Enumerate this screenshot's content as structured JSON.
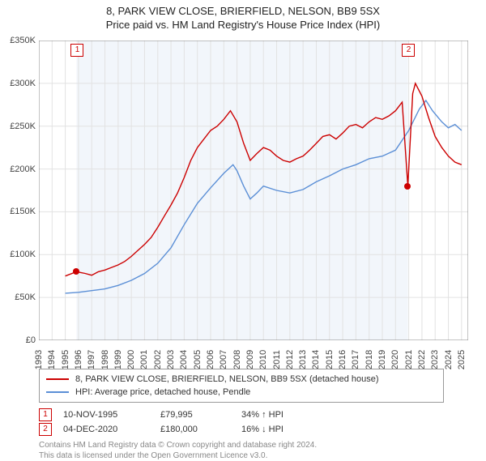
{
  "title": {
    "main": "8, PARK VIEW CLOSE, BRIERFIELD, NELSON, BB9 5SX",
    "sub": "Price paid vs. HM Land Registry's House Price Index (HPI)"
  },
  "chart": {
    "type": "line",
    "background_color": "#ffffff",
    "plot_band_color": "#f2f6fb",
    "grid_color": "#e2e2e2",
    "axis_color": "#888888",
    "ylim": [
      0,
      350000
    ],
    "ytick_step": 50000,
    "yticks_labels": [
      "£0",
      "£50K",
      "£100K",
      "£150K",
      "£200K",
      "£250K",
      "£300K",
      "£350K"
    ],
    "xlim": [
      1993,
      2025.5
    ],
    "xticks": [
      1993,
      1994,
      1995,
      1996,
      1997,
      1998,
      1999,
      2000,
      2001,
      2002,
      2003,
      2004,
      2005,
      2006,
      2007,
      2008,
      2009,
      2010,
      2011,
      2012,
      2013,
      2014,
      2015,
      2016,
      2017,
      2018,
      2019,
      2020,
      2021,
      2022,
      2023,
      2024,
      2025
    ],
    "plot_band": {
      "from": 1995.85,
      "to": 2020.93
    },
    "tick_fontsize": 11,
    "line_width": 1.4,
    "series": [
      {
        "name": "property",
        "label": "8, PARK VIEW CLOSE, BRIERFIELD, NELSON, BB9 5SX (detached house)",
        "color": "#cc0000",
        "points": [
          [
            1995.0,
            75000
          ],
          [
            1995.85,
            79995
          ],
          [
            1996.5,
            78000
          ],
          [
            1997.0,
            76000
          ],
          [
            1997.5,
            80000
          ],
          [
            1998.0,
            82000
          ],
          [
            1998.5,
            85000
          ],
          [
            1999.0,
            88000
          ],
          [
            1999.5,
            92000
          ],
          [
            2000.0,
            98000
          ],
          [
            2000.5,
            105000
          ],
          [
            2001.0,
            112000
          ],
          [
            2001.5,
            120000
          ],
          [
            2002.0,
            132000
          ],
          [
            2002.5,
            145000
          ],
          [
            2003.0,
            158000
          ],
          [
            2003.5,
            172000
          ],
          [
            2004.0,
            190000
          ],
          [
            2004.5,
            210000
          ],
          [
            2005.0,
            225000
          ],
          [
            2005.5,
            235000
          ],
          [
            2006.0,
            245000
          ],
          [
            2006.5,
            250000
          ],
          [
            2007.0,
            258000
          ],
          [
            2007.5,
            268000
          ],
          [
            2008.0,
            255000
          ],
          [
            2008.5,
            230000
          ],
          [
            2009.0,
            210000
          ],
          [
            2009.5,
            218000
          ],
          [
            2010.0,
            225000
          ],
          [
            2010.5,
            222000
          ],
          [
            2011.0,
            215000
          ],
          [
            2011.5,
            210000
          ],
          [
            2012.0,
            208000
          ],
          [
            2012.5,
            212000
          ],
          [
            2013.0,
            215000
          ],
          [
            2013.5,
            222000
          ],
          [
            2014.0,
            230000
          ],
          [
            2014.5,
            238000
          ],
          [
            2015.0,
            240000
          ],
          [
            2015.5,
            235000
          ],
          [
            2016.0,
            242000
          ],
          [
            2016.5,
            250000
          ],
          [
            2017.0,
            252000
          ],
          [
            2017.5,
            248000
          ],
          [
            2018.0,
            255000
          ],
          [
            2018.5,
            260000
          ],
          [
            2019.0,
            258000
          ],
          [
            2019.5,
            262000
          ],
          [
            2020.0,
            268000
          ],
          [
            2020.5,
            278000
          ],
          [
            2020.93,
            180000
          ],
          [
            2021.3,
            288000
          ],
          [
            2021.5,
            300000
          ],
          [
            2022.0,
            285000
          ],
          [
            2022.5,
            260000
          ],
          [
            2023.0,
            238000
          ],
          [
            2023.5,
            225000
          ],
          [
            2024.0,
            215000
          ],
          [
            2024.5,
            208000
          ],
          [
            2025.0,
            205000
          ]
        ]
      },
      {
        "name": "hpi",
        "label": "HPI: Average price, detached house, Pendle",
        "color": "#5b8fd6",
        "points": [
          [
            1995.0,
            55000
          ],
          [
            1996.0,
            56000
          ],
          [
            1997.0,
            58000
          ],
          [
            1998.0,
            60000
          ],
          [
            1999.0,
            64000
          ],
          [
            2000.0,
            70000
          ],
          [
            2001.0,
            78000
          ],
          [
            2002.0,
            90000
          ],
          [
            2003.0,
            108000
          ],
          [
            2004.0,
            135000
          ],
          [
            2005.0,
            160000
          ],
          [
            2006.0,
            178000
          ],
          [
            2007.0,
            195000
          ],
          [
            2007.7,
            205000
          ],
          [
            2008.0,
            198000
          ],
          [
            2008.5,
            180000
          ],
          [
            2009.0,
            165000
          ],
          [
            2009.5,
            172000
          ],
          [
            2010.0,
            180000
          ],
          [
            2011.0,
            175000
          ],
          [
            2012.0,
            172000
          ],
          [
            2013.0,
            176000
          ],
          [
            2014.0,
            185000
          ],
          [
            2015.0,
            192000
          ],
          [
            2016.0,
            200000
          ],
          [
            2017.0,
            205000
          ],
          [
            2018.0,
            212000
          ],
          [
            2019.0,
            215000
          ],
          [
            2020.0,
            222000
          ],
          [
            2021.0,
            245000
          ],
          [
            2021.8,
            270000
          ],
          [
            2022.3,
            280000
          ],
          [
            2022.8,
            268000
          ],
          [
            2023.5,
            255000
          ],
          [
            2024.0,
            248000
          ],
          [
            2024.5,
            252000
          ],
          [
            2025.0,
            245000
          ]
        ]
      }
    ],
    "markers": [
      {
        "idx": "1",
        "x": 1995.85,
        "y": 79995,
        "label_y_top": true
      },
      {
        "idx": "2",
        "x": 2020.93,
        "y": 180000,
        "label_y_top": true
      }
    ]
  },
  "legend": {
    "series": [
      {
        "color": "#cc0000",
        "label": "8, PARK VIEW CLOSE, BRIERFIELD, NELSON, BB9 5SX (detached house)"
      },
      {
        "color": "#5b8fd6",
        "label": "HPI: Average price, detached house, Pendle"
      }
    ]
  },
  "sales": [
    {
      "idx": "1",
      "date": "10-NOV-1995",
      "price": "£79,995",
      "pct": "34% ↑ HPI"
    },
    {
      "idx": "2",
      "date": "04-DEC-2020",
      "price": "£180,000",
      "pct": "16% ↓ HPI"
    }
  ],
  "license": {
    "line1": "Contains HM Land Registry data © Crown copyright and database right 2024.",
    "line2": "This data is licensed under the Open Government Licence v3.0."
  }
}
